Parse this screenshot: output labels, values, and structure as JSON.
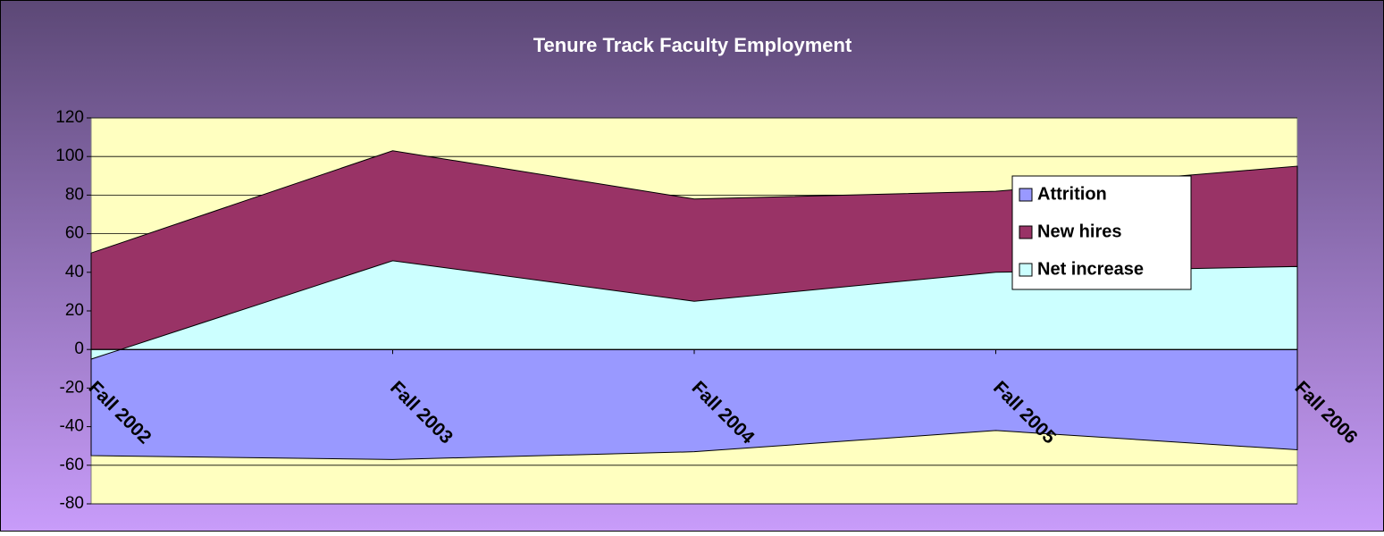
{
  "chart_data": {
    "type": "area",
    "title": "Tenure Track Faculty Employment",
    "categories": [
      "Fall 2002",
      "Fall 2003",
      "Fall 2004",
      "Fall 2005",
      "Fall 2006"
    ],
    "series": [
      {
        "name": "Attrition",
        "color": "#9999ff",
        "values": [
          -55,
          -57,
          -53,
          -42,
          -52
        ]
      },
      {
        "name": "New hires",
        "color": "#993366",
        "values": [
          50,
          103,
          78,
          82,
          95
        ]
      },
      {
        "name": "Net increase",
        "color": "#ccffff",
        "values": [
          -5,
          46,
          25,
          40,
          43
        ]
      }
    ],
    "ylim": [
      -80,
      120
    ],
    "yticks": [
      -80,
      -60,
      -40,
      -20,
      0,
      20,
      40,
      60,
      80,
      100,
      120
    ],
    "grid": true,
    "legend": "right"
  }
}
